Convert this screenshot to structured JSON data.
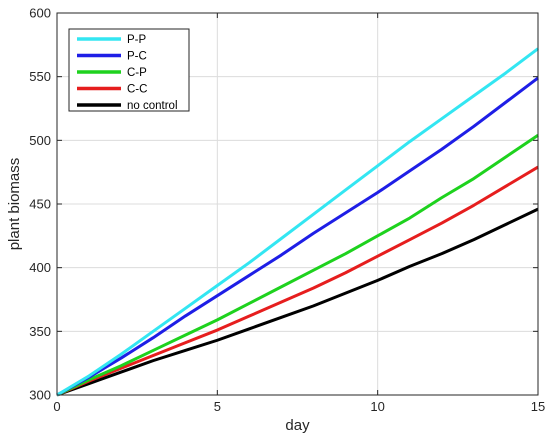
{
  "chart_data": {
    "type": "line",
    "xlabel": "day",
    "ylabel": "plant biomass",
    "xlim": [
      0,
      15
    ],
    "ylim": [
      300,
      600
    ],
    "xticks": [
      0,
      5,
      10,
      15
    ],
    "yticks": [
      300,
      350,
      400,
      450,
      500,
      550,
      600
    ],
    "grid": true,
    "legend_position": "top-left",
    "x": [
      0,
      1,
      2,
      3,
      4,
      5,
      6,
      7,
      8,
      9,
      10,
      11,
      12,
      13,
      14,
      15
    ],
    "series": [
      {
        "name": "P-P",
        "color": "#33e6f2",
        "values": [
          300,
          315,
          332,
          350,
          368,
          386,
          404,
          423,
          442,
          461,
          480,
          499,
          517,
          535,
          553,
          572
        ]
      },
      {
        "name": "P-C",
        "color": "#1e1ee6",
        "values": [
          300,
          314,
          329,
          345,
          362,
          378,
          394,
          410,
          427,
          443,
          459,
          476,
          493,
          511,
          530,
          549
        ]
      },
      {
        "name": "C-P",
        "color": "#1ed21e",
        "values": [
          300,
          312,
          323,
          335,
          347,
          359,
          372,
          385,
          398,
          411,
          425,
          439,
          455,
          470,
          487,
          504
        ]
      },
      {
        "name": "C-C",
        "color": "#e61e1e",
        "values": [
          300,
          311,
          321,
          331,
          341,
          351,
          362,
          373,
          384,
          396,
          409,
          422,
          435,
          449,
          464,
          479
        ]
      },
      {
        "name": "no control",
        "color": "#000000",
        "values": [
          300,
          309,
          318,
          327,
          335,
          343,
          352,
          361,
          370,
          380,
          390,
          401,
          411,
          422,
          434,
          446
        ]
      }
    ]
  }
}
